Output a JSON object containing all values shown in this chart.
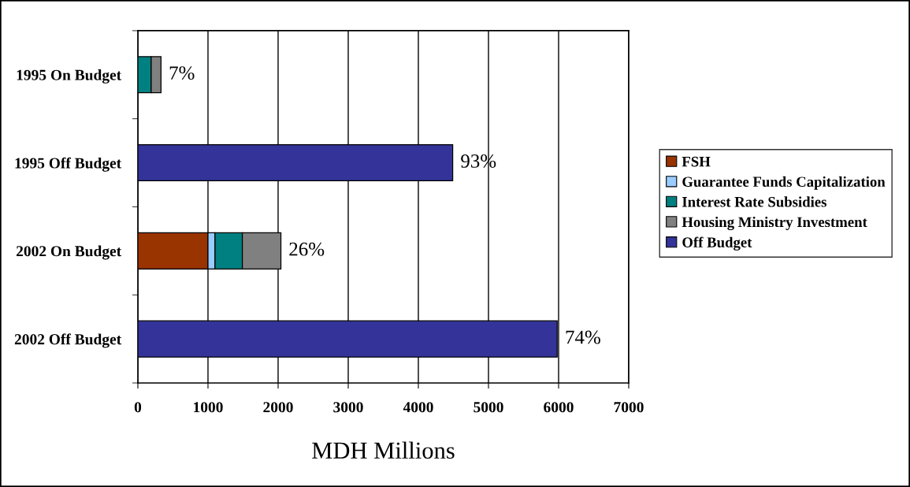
{
  "chart_data": {
    "type": "bar",
    "orientation": "horizontal",
    "stacked": true,
    "categories": [
      "1995 On Budget",
      "1995 Off Budget",
      "2002 On Budget",
      "2002 Off Budget"
    ],
    "series": [
      {
        "name": "FSH",
        "color": "#993300",
        "values": [
          null,
          null,
          1000,
          null
        ]
      },
      {
        "name": "Guarantee Funds Capitalization",
        "color": "#99ccff",
        "values": [
          null,
          null,
          100,
          null
        ]
      },
      {
        "name": "Interest Rate Subsidies",
        "color": "#008080",
        "values": [
          190,
          null,
          390,
          null
        ]
      },
      {
        "name": "Housing Ministry Investment",
        "color": "#808080",
        "values": [
          140,
          null,
          550,
          null
        ]
      },
      {
        "name": "Off Budget",
        "color": "#333399",
        "values": [
          null,
          4490,
          null,
          5980
        ]
      }
    ],
    "annotations": [
      {
        "text": "7%",
        "x": 330,
        "y": "1995 On Budget"
      },
      {
        "text": "93%",
        "x": 4490,
        "y": "1995 Off Budget"
      },
      {
        "text": "26%",
        "x": 2040,
        "y": "2002 On Budget"
      },
      {
        "text": "74%",
        "x": 5980,
        "y": "2002 Off Budget"
      }
    ],
    "xlabel": "MDH Millions",
    "xlim": [
      0,
      7000
    ],
    "xticks": [
      0,
      1000,
      2000,
      3000,
      4000,
      5000,
      6000,
      7000
    ],
    "grid": "x",
    "legend": "right"
  }
}
